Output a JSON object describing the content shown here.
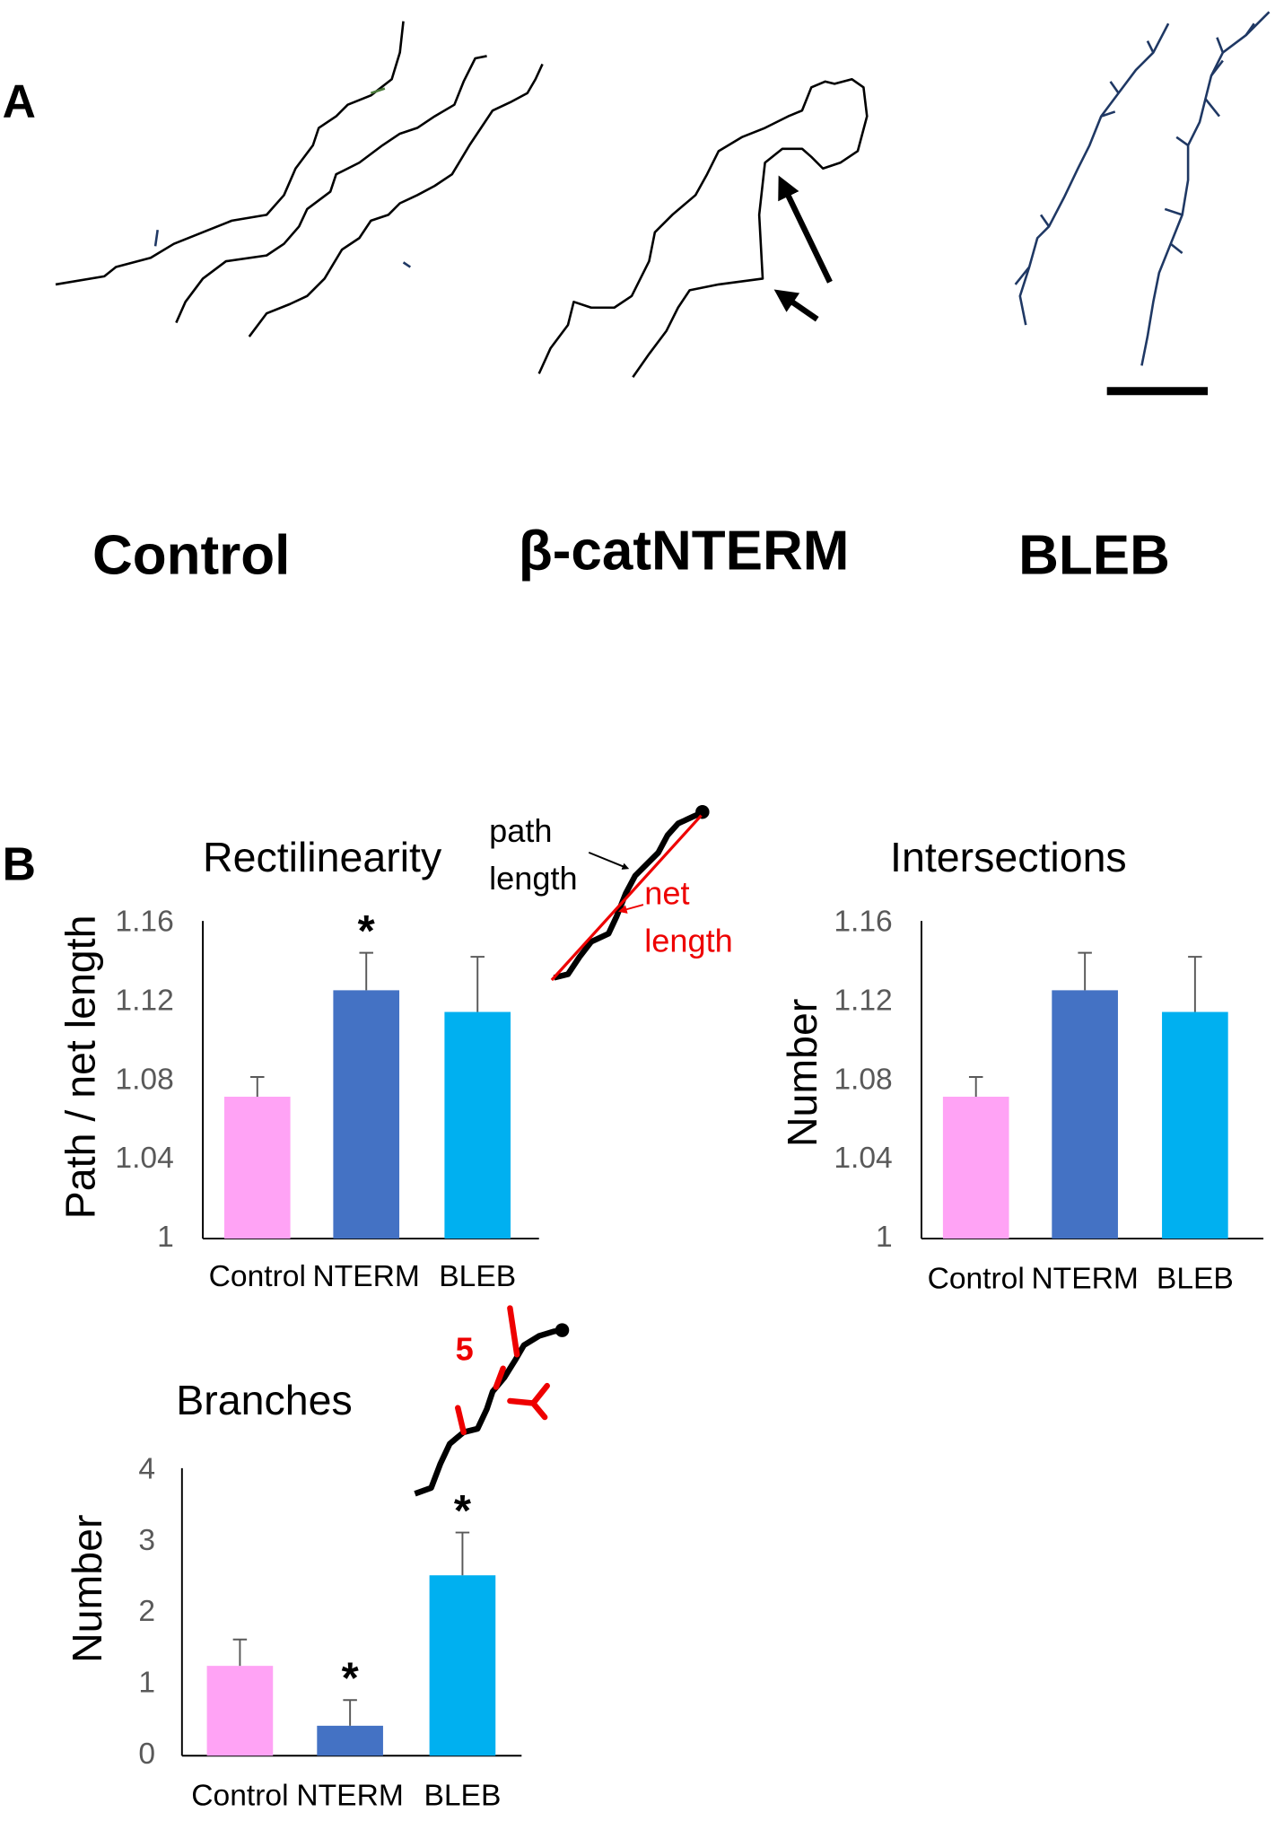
{
  "panel_a": {
    "label": "A",
    "conditions": [
      "Control",
      "β-catNTERM",
      "BLEB"
    ]
  },
  "panel_b": {
    "label": "B"
  },
  "chart_data": [
    {
      "type": "bar",
      "title": "Rectilinearity",
      "y_label": "Path / net length",
      "categories": [
        "Control",
        "NTERM",
        "BLEB"
      ],
      "values": [
        1.072,
        1.126,
        1.115
      ],
      "errors": [
        0.01,
        0.019,
        0.028
      ],
      "colors": [
        "#ffa3f5",
        "#4472c4",
        "#00b0f0"
      ],
      "ylim": [
        1,
        1.16
      ],
      "yticks": [
        1,
        1.04,
        1.08,
        1.12,
        1.16
      ],
      "significance": [
        null,
        "*",
        null
      ],
      "annotations": [
        "path length",
        "net length"
      ]
    },
    {
      "type": "bar",
      "title": "Intersections",
      "y_label": "Number",
      "categories": [
        "Control",
        "NTERM",
        "BLEB"
      ],
      "values": [
        1.072,
        1.126,
        1.115
      ],
      "errors": [
        0.01,
        0.019,
        0.028
      ],
      "colors": [
        "#ffa3f5",
        "#4472c4",
        "#00b0f0"
      ],
      "ylim": [
        1,
        1.16
      ],
      "yticks": [
        1,
        1.04,
        1.08,
        1.12,
        1.16
      ]
    },
    {
      "type": "bar",
      "title": "Branches",
      "y_label": "Number",
      "categories": [
        "Control",
        "NTERM",
        "BLEB"
      ],
      "values": [
        1.26,
        0.42,
        2.53
      ],
      "errors": [
        0.37,
        0.36,
        0.6
      ],
      "colors": [
        "#ffa3f5",
        "#4472c4",
        "#00b0f0"
      ],
      "ylim": [
        0,
        4
      ],
      "yticks": [
        0,
        1,
        2,
        3,
        4
      ],
      "significance": [
        null,
        "*",
        "*"
      ],
      "annotations": [
        "5"
      ]
    }
  ]
}
